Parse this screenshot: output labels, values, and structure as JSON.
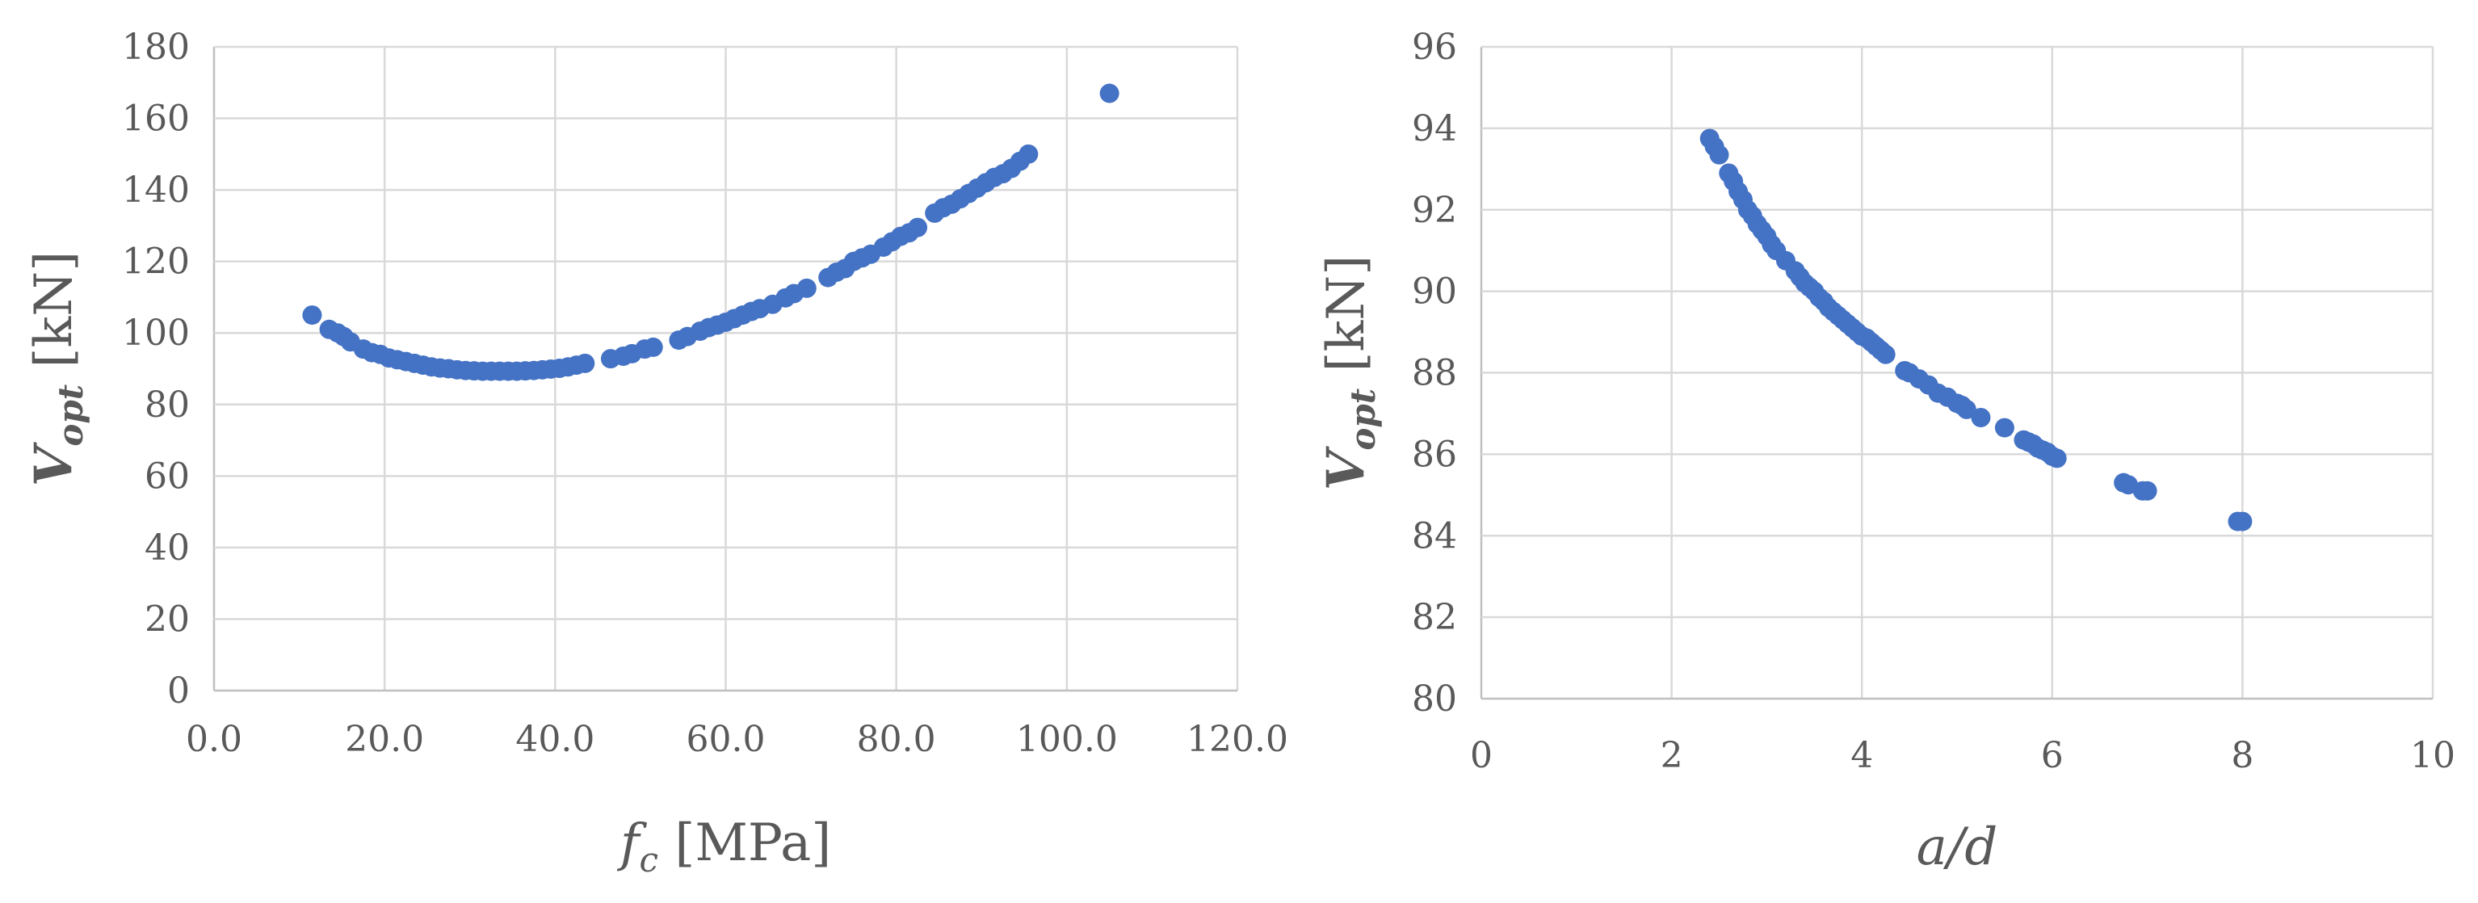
{
  "chart_data": [
    {
      "type": "scatter",
      "xlabel": {
        "main": "f",
        "sub": "c",
        "unit": "[MPa]"
      },
      "ylabel": {
        "main": "V",
        "sub": "opt",
        "unit": "[kN]"
      },
      "xlim": [
        0,
        120
      ],
      "ylim": [
        0,
        180
      ],
      "x_ticks": [
        "0.0",
        "20.0",
        "40.0",
        "60.0",
        "80.0",
        "100.0",
        "120.0"
      ],
      "y_ticks": [
        "0",
        "20",
        "40",
        "60",
        "80",
        "100",
        "120",
        "140",
        "160",
        "180"
      ],
      "grid": true,
      "marker_color": "#4472c4",
      "series": [
        {
          "points": [
            [
              11.5,
              105
            ],
            [
              13.5,
              101
            ],
            [
              14.5,
              100
            ],
            [
              15.2,
              99
            ],
            [
              16,
              97.5
            ],
            [
              17.5,
              95.5
            ],
            [
              18.5,
              94.5
            ],
            [
              19.5,
              94
            ],
            [
              20.5,
              93
            ],
            [
              21.5,
              92.5
            ],
            [
              22.5,
              92
            ],
            [
              23.5,
              91.5
            ],
            [
              24.5,
              91
            ],
            [
              25.5,
              90.5
            ],
            [
              26.5,
              90.2
            ],
            [
              27.5,
              90
            ],
            [
              28.5,
              89.7
            ],
            [
              29.5,
              89.5
            ],
            [
              30.5,
              89.4
            ],
            [
              31.5,
              89.3
            ],
            [
              32.5,
              89.3
            ],
            [
              33.5,
              89.3
            ],
            [
              34.5,
              89.3
            ],
            [
              35.5,
              89.3
            ],
            [
              36.5,
              89.4
            ],
            [
              37.5,
              89.5
            ],
            [
              38.5,
              89.7
            ],
            [
              39.5,
              89.9
            ],
            [
              40.5,
              90.1
            ],
            [
              41.5,
              90.5
            ],
            [
              42.5,
              91
            ],
            [
              43.5,
              91.5
            ],
            [
              46.5,
              92.8
            ],
            [
              48,
              93.5
            ],
            [
              49,
              94.2
            ],
            [
              50.5,
              95.5
            ],
            [
              51.5,
              96
            ],
            [
              54.5,
              98
            ],
            [
              55.5,
              99
            ],
            [
              57,
              100.5
            ],
            [
              58,
              101.5
            ],
            [
              59,
              102.2
            ],
            [
              60,
              103
            ],
            [
              61,
              104
            ],
            [
              62,
              105
            ],
            [
              63,
              106
            ],
            [
              64,
              106.8
            ],
            [
              65.5,
              108
            ],
            [
              67,
              109.8
            ],
            [
              68,
              111
            ],
            [
              69.5,
              112.5
            ],
            [
              72,
              115.5
            ],
            [
              73,
              117
            ],
            [
              74,
              118
            ],
            [
              75,
              120
            ],
            [
              76,
              121
            ],
            [
              77,
              122
            ],
            [
              78.5,
              124
            ],
            [
              79.5,
              125.5
            ],
            [
              80.5,
              127
            ],
            [
              81.5,
              128
            ],
            [
              82.5,
              129.5
            ],
            [
              84.5,
              133.5
            ],
            [
              85.5,
              135
            ],
            [
              86.5,
              136
            ],
            [
              87.5,
              137.5
            ],
            [
              88.5,
              139
            ],
            [
              89.5,
              140.5
            ],
            [
              90.5,
              142
            ],
            [
              91.5,
              143.5
            ],
            [
              92.5,
              144.5
            ],
            [
              93.5,
              146
            ],
            [
              94.5,
              148
            ],
            [
              95.5,
              150
            ],
            [
              105,
              167
            ]
          ]
        }
      ]
    },
    {
      "type": "scatter",
      "xlabel": {
        "main": "a/d"
      },
      "ylabel": {
        "main": "V",
        "sub": "opt",
        "unit": "[kN]"
      },
      "xlim": [
        0,
        10
      ],
      "ylim": [
        80,
        96
      ],
      "x_ticks": [
        "0",
        "2",
        "4",
        "6",
        "8",
        "10"
      ],
      "y_ticks": [
        "80",
        "82",
        "84",
        "86",
        "88",
        "90",
        "92",
        "94",
        "96"
      ],
      "grid": true,
      "marker_color": "#4472c4",
      "series": [
        {
          "points": [
            [
              2.4,
              93.75
            ],
            [
              2.45,
              93.55
            ],
            [
              2.5,
              93.35
            ],
            [
              2.6,
              92.9
            ],
            [
              2.65,
              92.7
            ],
            [
              2.7,
              92.45
            ],
            [
              2.75,
              92.25
            ],
            [
              2.8,
              92.0
            ],
            [
              2.85,
              91.85
            ],
            [
              2.9,
              91.65
            ],
            [
              2.95,
              91.5
            ],
            [
              3.0,
              91.35
            ],
            [
              3.05,
              91.15
            ],
            [
              3.1,
              91.0
            ],
            [
              3.2,
              90.75
            ],
            [
              3.3,
              90.5
            ],
            [
              3.35,
              90.35
            ],
            [
              3.4,
              90.2
            ],
            [
              3.45,
              90.1
            ],
            [
              3.5,
              90.0
            ],
            [
              3.55,
              89.85
            ],
            [
              3.6,
              89.75
            ],
            [
              3.65,
              89.6
            ],
            [
              3.7,
              89.5
            ],
            [
              3.75,
              89.4
            ],
            [
              3.8,
              89.3
            ],
            [
              3.85,
              89.2
            ],
            [
              3.9,
              89.1
            ],
            [
              3.95,
              89.0
            ],
            [
              4.0,
              88.9
            ],
            [
              4.05,
              88.85
            ],
            [
              4.1,
              88.75
            ],
            [
              4.15,
              88.65
            ],
            [
              4.2,
              88.55
            ],
            [
              4.25,
              88.45
            ],
            [
              4.45,
              88.05
            ],
            [
              4.5,
              88.0
            ],
            [
              4.6,
              87.85
            ],
            [
              4.7,
              87.7
            ],
            [
              4.8,
              87.5
            ],
            [
              4.9,
              87.4
            ],
            [
              5.0,
              87.25
            ],
            [
              5.05,
              87.2
            ],
            [
              5.1,
              87.1
            ],
            [
              5.25,
              86.9
            ],
            [
              5.5,
              86.65
            ],
            [
              5.7,
              86.35
            ],
            [
              5.75,
              86.3
            ],
            [
              5.8,
              86.25
            ],
            [
              5.85,
              86.15
            ],
            [
              5.9,
              86.1
            ],
            [
              5.95,
              86.05
            ],
            [
              6.0,
              85.95
            ],
            [
              6.05,
              85.9
            ],
            [
              6.75,
              85.3
            ],
            [
              6.8,
              85.25
            ],
            [
              6.95,
              85.1
            ],
            [
              7.0,
              85.1
            ],
            [
              7.95,
              84.35
            ],
            [
              8.0,
              84.35
            ]
          ]
        }
      ]
    }
  ]
}
